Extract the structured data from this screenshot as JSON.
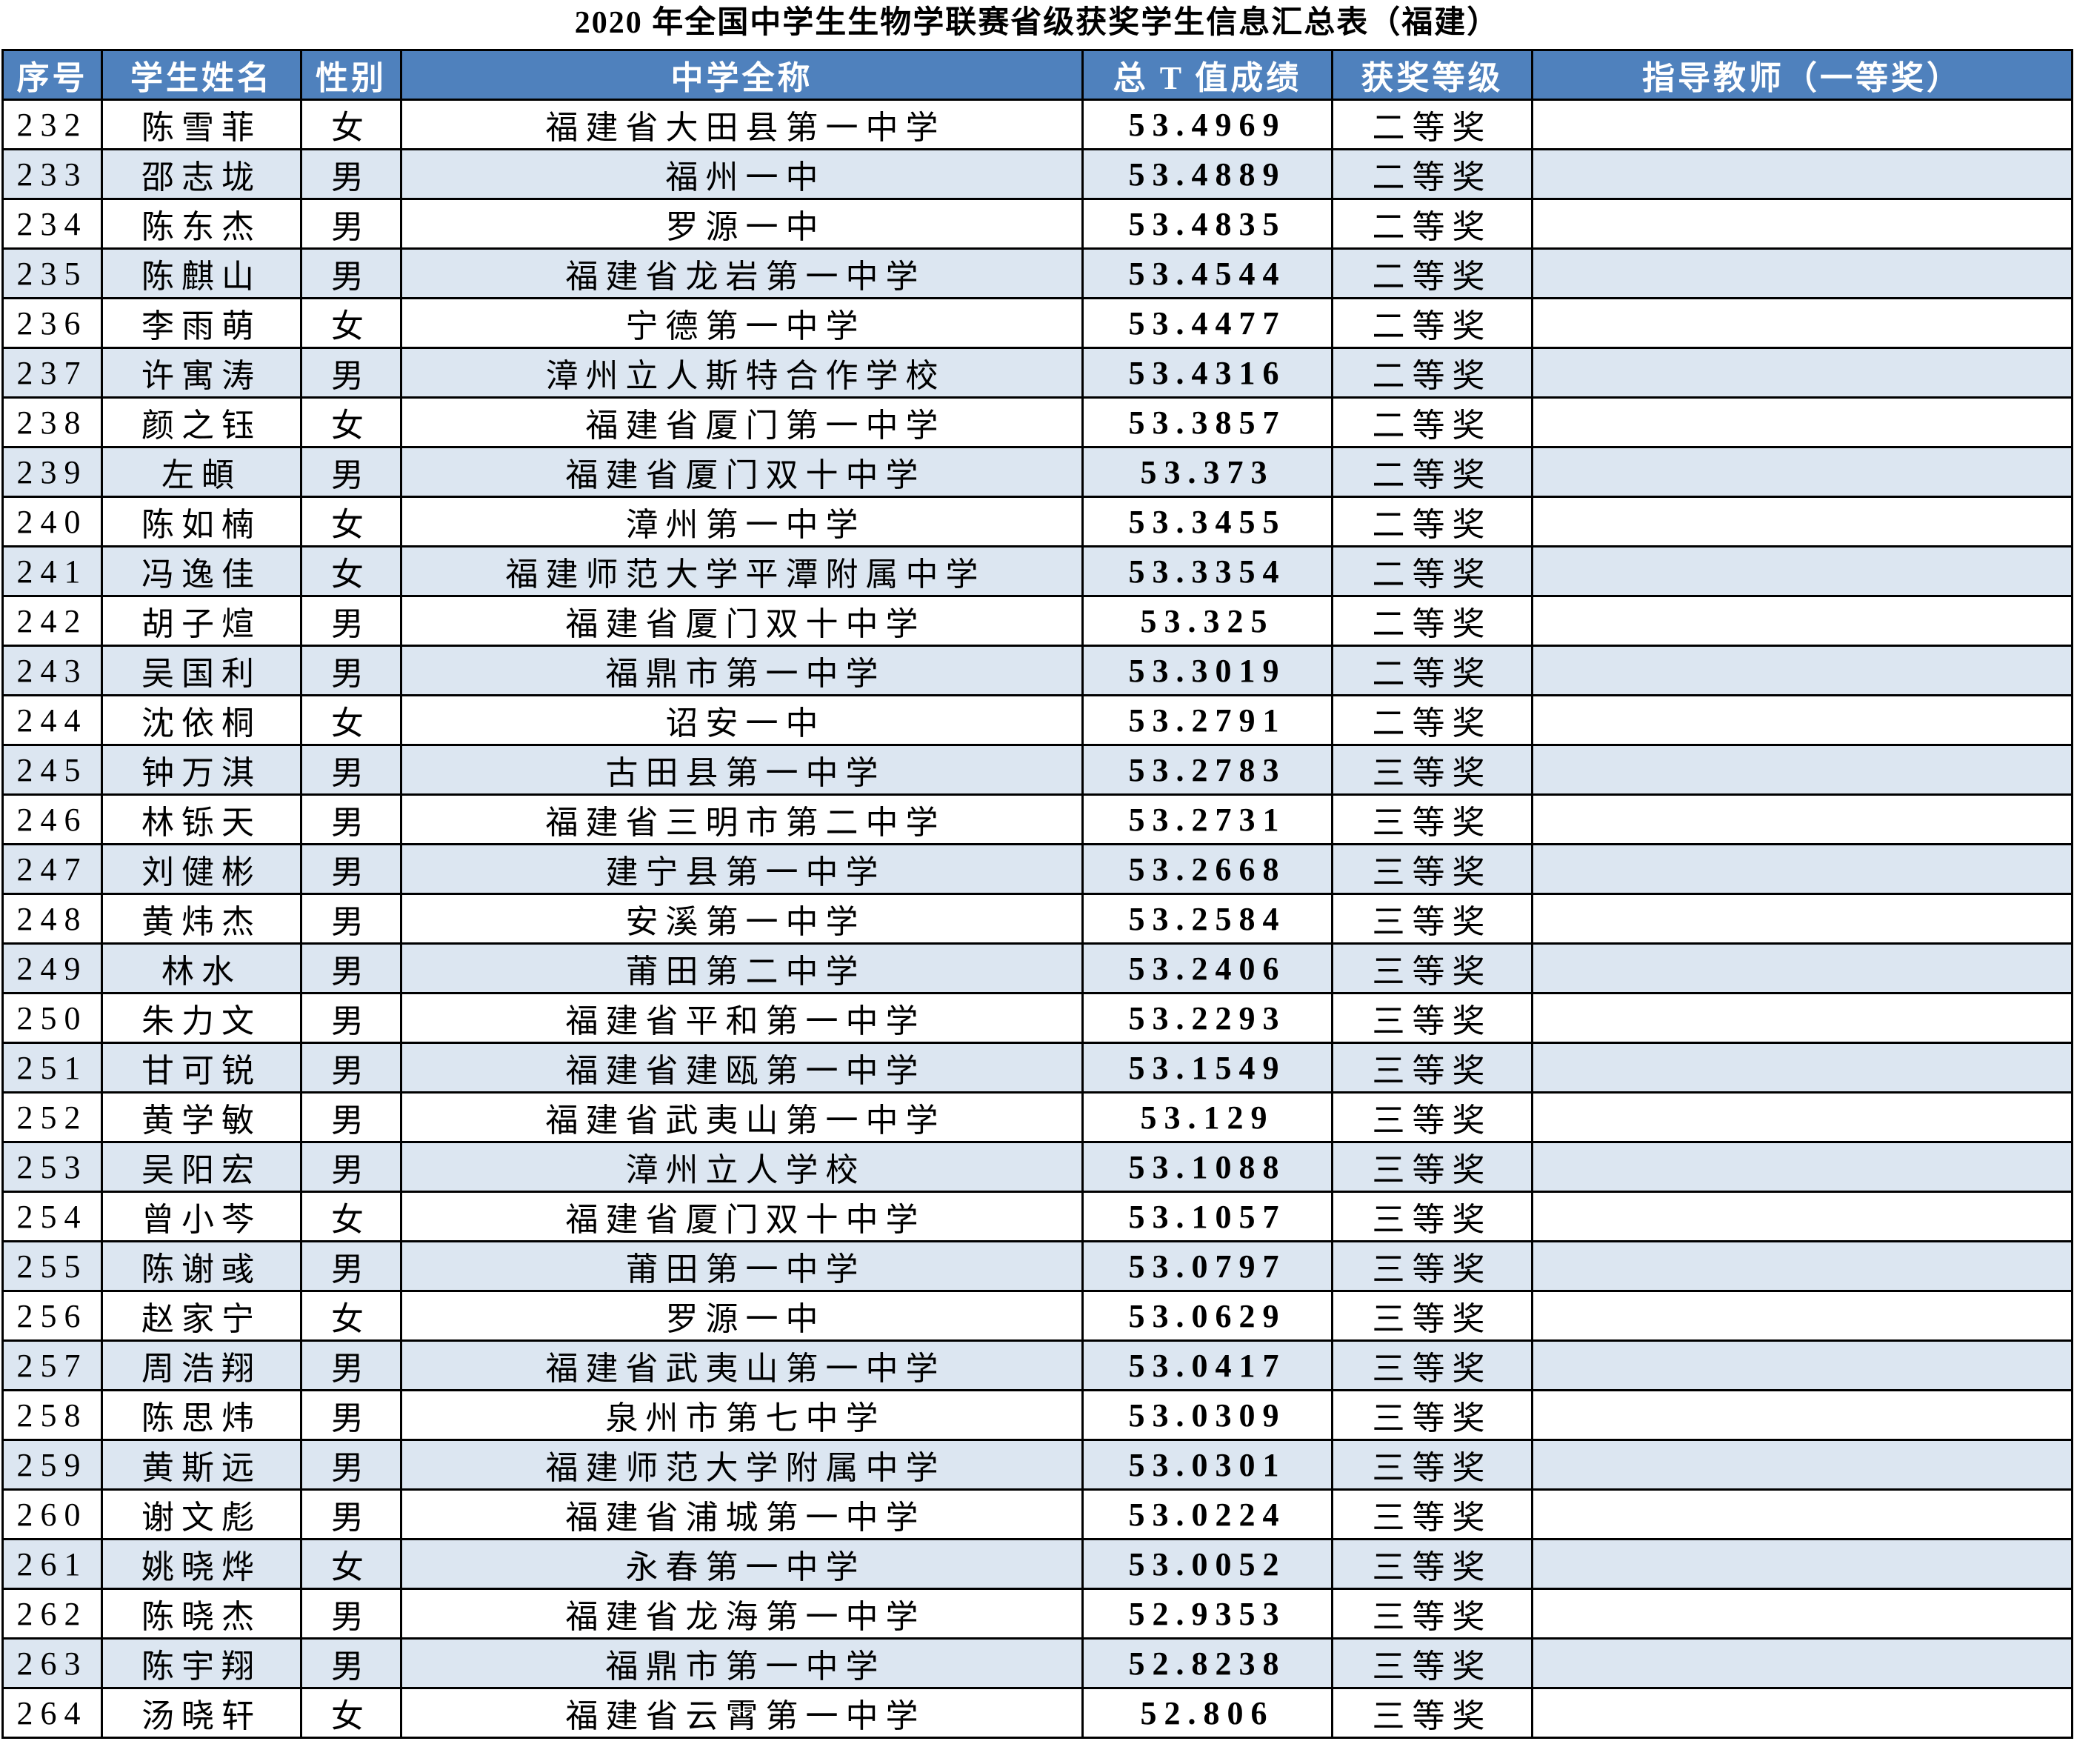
{
  "page_title": "2020 年全国中学生生物学联赛省级获奖学生信息汇总表（福建）",
  "colors": {
    "header_bg": "#4f81bd",
    "header_text": "#ffffff",
    "stripe_bg": "#dce6f1",
    "row_bg": "#ffffff",
    "border": "#000000",
    "body_text": "#000000"
  },
  "table": {
    "headers": [
      "序号",
      "学生姓名",
      "性别",
      "中学全称",
      "总 T 值成绩",
      "获奖等级",
      "指导教师（一等奖）"
    ],
    "rows": [
      [
        "232",
        "陈雪菲",
        "女",
        "福建省大田县第一中学",
        "53.4969",
        "二等奖",
        ""
      ],
      [
        "233",
        "邵志垅",
        "男",
        "福州一中",
        "53.4889",
        "二等奖",
        ""
      ],
      [
        "234",
        "陈东杰",
        "男",
        "罗源一中",
        "53.4835",
        "二等奖",
        ""
      ],
      [
        "235",
        "陈麒山",
        "男",
        "福建省龙岩第一中学",
        "53.4544",
        "二等奖",
        ""
      ],
      [
        "236",
        "李雨萌",
        "女",
        "宁德第一中学",
        "53.4477",
        "二等奖",
        ""
      ],
      [
        "237",
        "许寓涛",
        "男",
        "漳州立人斯特合作学校",
        "53.4316",
        "二等奖",
        ""
      ],
      [
        "238",
        "颜之钰",
        "女",
        "　福建省厦门第一中学",
        "53.3857",
        "二等奖",
        ""
      ],
      [
        "239",
        "左頔",
        "男",
        "福建省厦门双十中学",
        "53.373",
        "二等奖",
        ""
      ],
      [
        "240",
        "陈如楠",
        "女",
        "漳州第一中学",
        "53.3455",
        "二等奖",
        ""
      ],
      [
        "241",
        "冯逸佳",
        "女",
        "福建师范大学平潭附属中学",
        "53.3354",
        "二等奖",
        ""
      ],
      [
        "242",
        "胡子煊",
        "男",
        "福建省厦门双十中学",
        "53.325",
        "二等奖",
        ""
      ],
      [
        "243",
        "吴国利",
        "男",
        "福鼎市第一中学",
        "53.3019",
        "二等奖",
        ""
      ],
      [
        "244",
        "沈依桐",
        "女",
        "诏安一中",
        "53.2791",
        "二等奖",
        ""
      ],
      [
        "245",
        "钟万淇",
        "男",
        "古田县第一中学",
        "53.2783",
        "三等奖",
        ""
      ],
      [
        "246",
        "林铄天",
        "男",
        "福建省三明市第二中学",
        "53.2731",
        "三等奖",
        ""
      ],
      [
        "247",
        "刘健彬",
        "男",
        "建宁县第一中学",
        "53.2668",
        "三等奖",
        ""
      ],
      [
        "248",
        "黄炜杰",
        "男",
        "安溪第一中学",
        "53.2584",
        "三等奖",
        ""
      ],
      [
        "249",
        "林水",
        "男",
        "莆田第二中学",
        "53.2406",
        "三等奖",
        ""
      ],
      [
        "250",
        "朱力文",
        "男",
        "福建省平和第一中学",
        "53.2293",
        "三等奖",
        ""
      ],
      [
        "251",
        "甘可锐",
        "男",
        "福建省建瓯第一中学",
        "53.1549",
        "三等奖",
        ""
      ],
      [
        "252",
        "黄学敏",
        "男",
        "福建省武夷山第一中学",
        "53.129",
        "三等奖",
        ""
      ],
      [
        "253",
        "吴阳宏",
        "男",
        "漳州立人学校",
        "53.1088",
        "三等奖",
        ""
      ],
      [
        "254",
        "曾小芩",
        "女",
        "福建省厦门双十中学",
        "53.1057",
        "三等奖",
        ""
      ],
      [
        "255",
        "陈谢彧",
        "男",
        "莆田第一中学",
        "53.0797",
        "三等奖",
        ""
      ],
      [
        "256",
        "赵家宁",
        "女",
        "罗源一中",
        "53.0629",
        "三等奖",
        ""
      ],
      [
        "257",
        "周浩翔",
        "男",
        "福建省武夷山第一中学",
        "53.0417",
        "三等奖",
        ""
      ],
      [
        "258",
        "陈思炜",
        "男",
        "泉州市第七中学",
        "53.0309",
        "三等奖",
        ""
      ],
      [
        "259",
        "黄斯远",
        "男",
        "福建师范大学附属中学",
        "53.0301",
        "三等奖",
        ""
      ],
      [
        "260",
        "谢文彪",
        "男",
        "福建省浦城第一中学",
        "53.0224",
        "三等奖",
        ""
      ],
      [
        "261",
        "姚晓烨",
        "女",
        "永春第一中学",
        "53.0052",
        "三等奖",
        ""
      ],
      [
        "262",
        "陈晓杰",
        "男",
        "福建省龙海第一中学",
        "52.9353",
        "三等奖",
        ""
      ],
      [
        "263",
        "陈宇翔",
        "男",
        "福鼎市第一中学",
        "52.8238",
        "三等奖",
        ""
      ],
      [
        "264",
        "汤晓轩",
        "女",
        "福建省云霄第一中学",
        "52.806",
        "三等奖",
        ""
      ]
    ]
  }
}
